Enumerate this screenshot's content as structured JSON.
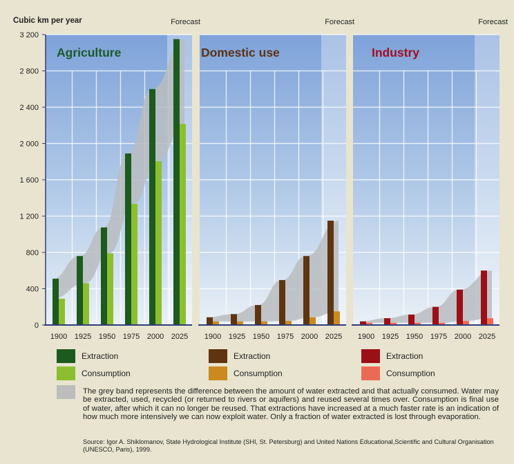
{
  "chart_data": [
    {
      "type": "bar",
      "title": "Agriculture",
      "ylabel": "Cubic km per year",
      "forecast_label": "Forecast",
      "categories": [
        "1900",
        "1925",
        "1950",
        "1975",
        "2000",
        "2025"
      ],
      "ylim": [
        0,
        3200
      ],
      "yticks": [
        "0",
        "400",
        "800",
        "1 200",
        "1 600",
        "2 000",
        "2 400",
        "2 800",
        "3 200"
      ],
      "title_color": "#1b5a2a",
      "series": [
        {
          "name": "Extraction",
          "color": "#1c5a1e",
          "values": [
            510,
            760,
            1075,
            1890,
            2600,
            3150
          ]
        },
        {
          "name": "Consumption",
          "color": "#8cbf2f",
          "values": [
            290,
            460,
            790,
            1335,
            1805,
            2215
          ]
        }
      ]
    },
    {
      "type": "bar",
      "title": "Domestic use",
      "forecast_label": "Forecast",
      "categories": [
        "1900",
        "1925",
        "1950",
        "1975",
        "2000",
        "2025"
      ],
      "ylim": [
        0,
        3200
      ],
      "title_color": "#5a3416",
      "series": [
        {
          "name": "Extraction",
          "color": "#5e3510",
          "values": [
            85,
            120,
            220,
            495,
            760,
            1150
          ]
        },
        {
          "name": "Consumption",
          "color": "#c98a1f",
          "values": [
            40,
            40,
            40,
            45,
            85,
            150
          ]
        }
      ]
    },
    {
      "type": "bar",
      "title": "Industry",
      "forecast_label": "Forecast",
      "categories": [
        "1900",
        "1925",
        "1950",
        "1975",
        "2000",
        "2025"
      ],
      "ylim": [
        0,
        3200
      ],
      "title_color": "#a01020",
      "series": [
        {
          "name": "Extraction",
          "color": "#9c0f16",
          "values": [
            40,
            75,
            115,
            200,
            390,
            600
          ]
        },
        {
          "name": "Consumption",
          "color": "#ec6a55",
          "values": [
            25,
            25,
            25,
            25,
            45,
            75
          ]
        }
      ]
    }
  ],
  "band_color": "#b9bcc0",
  "band_note": "The grey band represents the difference between the amount of water extracted and that actually consumed. Water may be extracted, used, recycled (or returned to rivers or aquifers) and reused several times over. Consumption is final use of water, after which it can no longer be reused. That extractions have increased at a much faster rate is an indication of how much more intensively we can now exploit water. Only a fraction of water extracted is lost through evaporation.",
  "source": "Source: Igor A. Shiklomanov, State Hydrological Institute (SHI, St. Petersburg) and United Nations Educational,Scientific and Cultural Organisation (UNESCO, Paris), 1999."
}
